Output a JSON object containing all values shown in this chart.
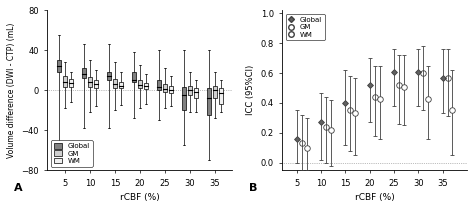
{
  "rcbf_ticks": [
    5,
    10,
    15,
    20,
    25,
    30,
    35
  ],
  "panel_A": {
    "xlabel": "rCBF (%)",
    "ylabel": "Volume difference (DWI - CTP) (mL)",
    "ylim": [
      -80,
      80
    ],
    "yticks": [
      -80,
      -40,
      0,
      40,
      80
    ],
    "global_color": "#808080",
    "gm_color": "#d0d0d0",
    "wm_color": "#f0f0f0",
    "boxes": {
      "global": {
        "q1": [
          18,
          12,
          10,
          8,
          0,
          -20,
          -25
        ],
        "median": [
          24,
          16,
          14,
          10,
          3,
          -5,
          -8
        ],
        "q3": [
          30,
          22,
          18,
          18,
          10,
          3,
          2
        ],
        "whisker_low": [
          -70,
          -38,
          -38,
          -28,
          -30,
          -55,
          -70
        ],
        "whisker_high": [
          55,
          46,
          46,
          38,
          40,
          40,
          40
        ]
      },
      "gm": {
        "q1": [
          3,
          3,
          2,
          2,
          -2,
          -5,
          -8
        ],
        "median": [
          8,
          8,
          6,
          5,
          1,
          0,
          0
        ],
        "q3": [
          14,
          13,
          11,
          10,
          6,
          4,
          4
        ],
        "whisker_low": [
          -18,
          -22,
          -20,
          -18,
          -18,
          -22,
          -28
        ],
        "whisker_high": [
          28,
          30,
          28,
          25,
          22,
          18,
          18
        ]
      },
      "wm": {
        "q1": [
          3,
          2,
          2,
          1,
          -3,
          -8,
          -14
        ],
        "median": [
          7,
          6,
          4,
          4,
          0,
          -2,
          -3
        ],
        "q3": [
          11,
          10,
          8,
          7,
          4,
          2,
          2
        ],
        "whisker_low": [
          -12,
          -16,
          -15,
          -14,
          -16,
          -22,
          -22
        ],
        "whisker_high": [
          18,
          20,
          18,
          16,
          14,
          10,
          10
        ]
      }
    }
  },
  "panel_B": {
    "xlabel": "rCBF (%)",
    "ylabel": "ICC (95%CI)",
    "ylim": [
      -0.05,
      1.02
    ],
    "yticks": [
      0.0,
      0.2,
      0.4,
      0.6,
      0.8,
      1.0
    ],
    "icc": {
      "global": {
        "x": [
          5,
          10,
          15,
          20,
          25,
          30,
          35
        ],
        "mean": [
          0.16,
          0.27,
          0.4,
          0.52,
          0.61,
          0.61,
          0.57
        ],
        "lo": [
          0.0,
          0.02,
          0.12,
          0.27,
          0.38,
          0.38,
          0.33
        ],
        "hi": [
          0.35,
          0.47,
          0.62,
          0.7,
          0.76,
          0.76,
          0.76
        ]
      },
      "gm": {
        "x": [
          6,
          11,
          16,
          21,
          26,
          31,
          36
        ],
        "mean": [
          0.13,
          0.24,
          0.35,
          0.44,
          0.52,
          0.6,
          0.57
        ],
        "lo": [
          -0.05,
          0.0,
          0.08,
          0.18,
          0.26,
          0.35,
          0.31
        ],
        "hi": [
          0.32,
          0.44,
          0.58,
          0.65,
          0.72,
          0.78,
          0.76
        ]
      },
      "wm": {
        "x": [
          7,
          12,
          17,
          22,
          27,
          32,
          37
        ],
        "mean": [
          0.1,
          0.22,
          0.33,
          0.43,
          0.51,
          0.43,
          0.35
        ],
        "lo": [
          -0.07,
          -0.02,
          0.05,
          0.16,
          0.25,
          0.16,
          0.05
        ],
        "hi": [
          0.3,
          0.42,
          0.57,
          0.65,
          0.72,
          0.65,
          0.62
        ]
      }
    }
  },
  "legend_A": {
    "labels": [
      "Global",
      "GM",
      "WM"
    ],
    "colors": [
      "#808080",
      "#d0d0d0",
      "#f0f0f0"
    ]
  }
}
